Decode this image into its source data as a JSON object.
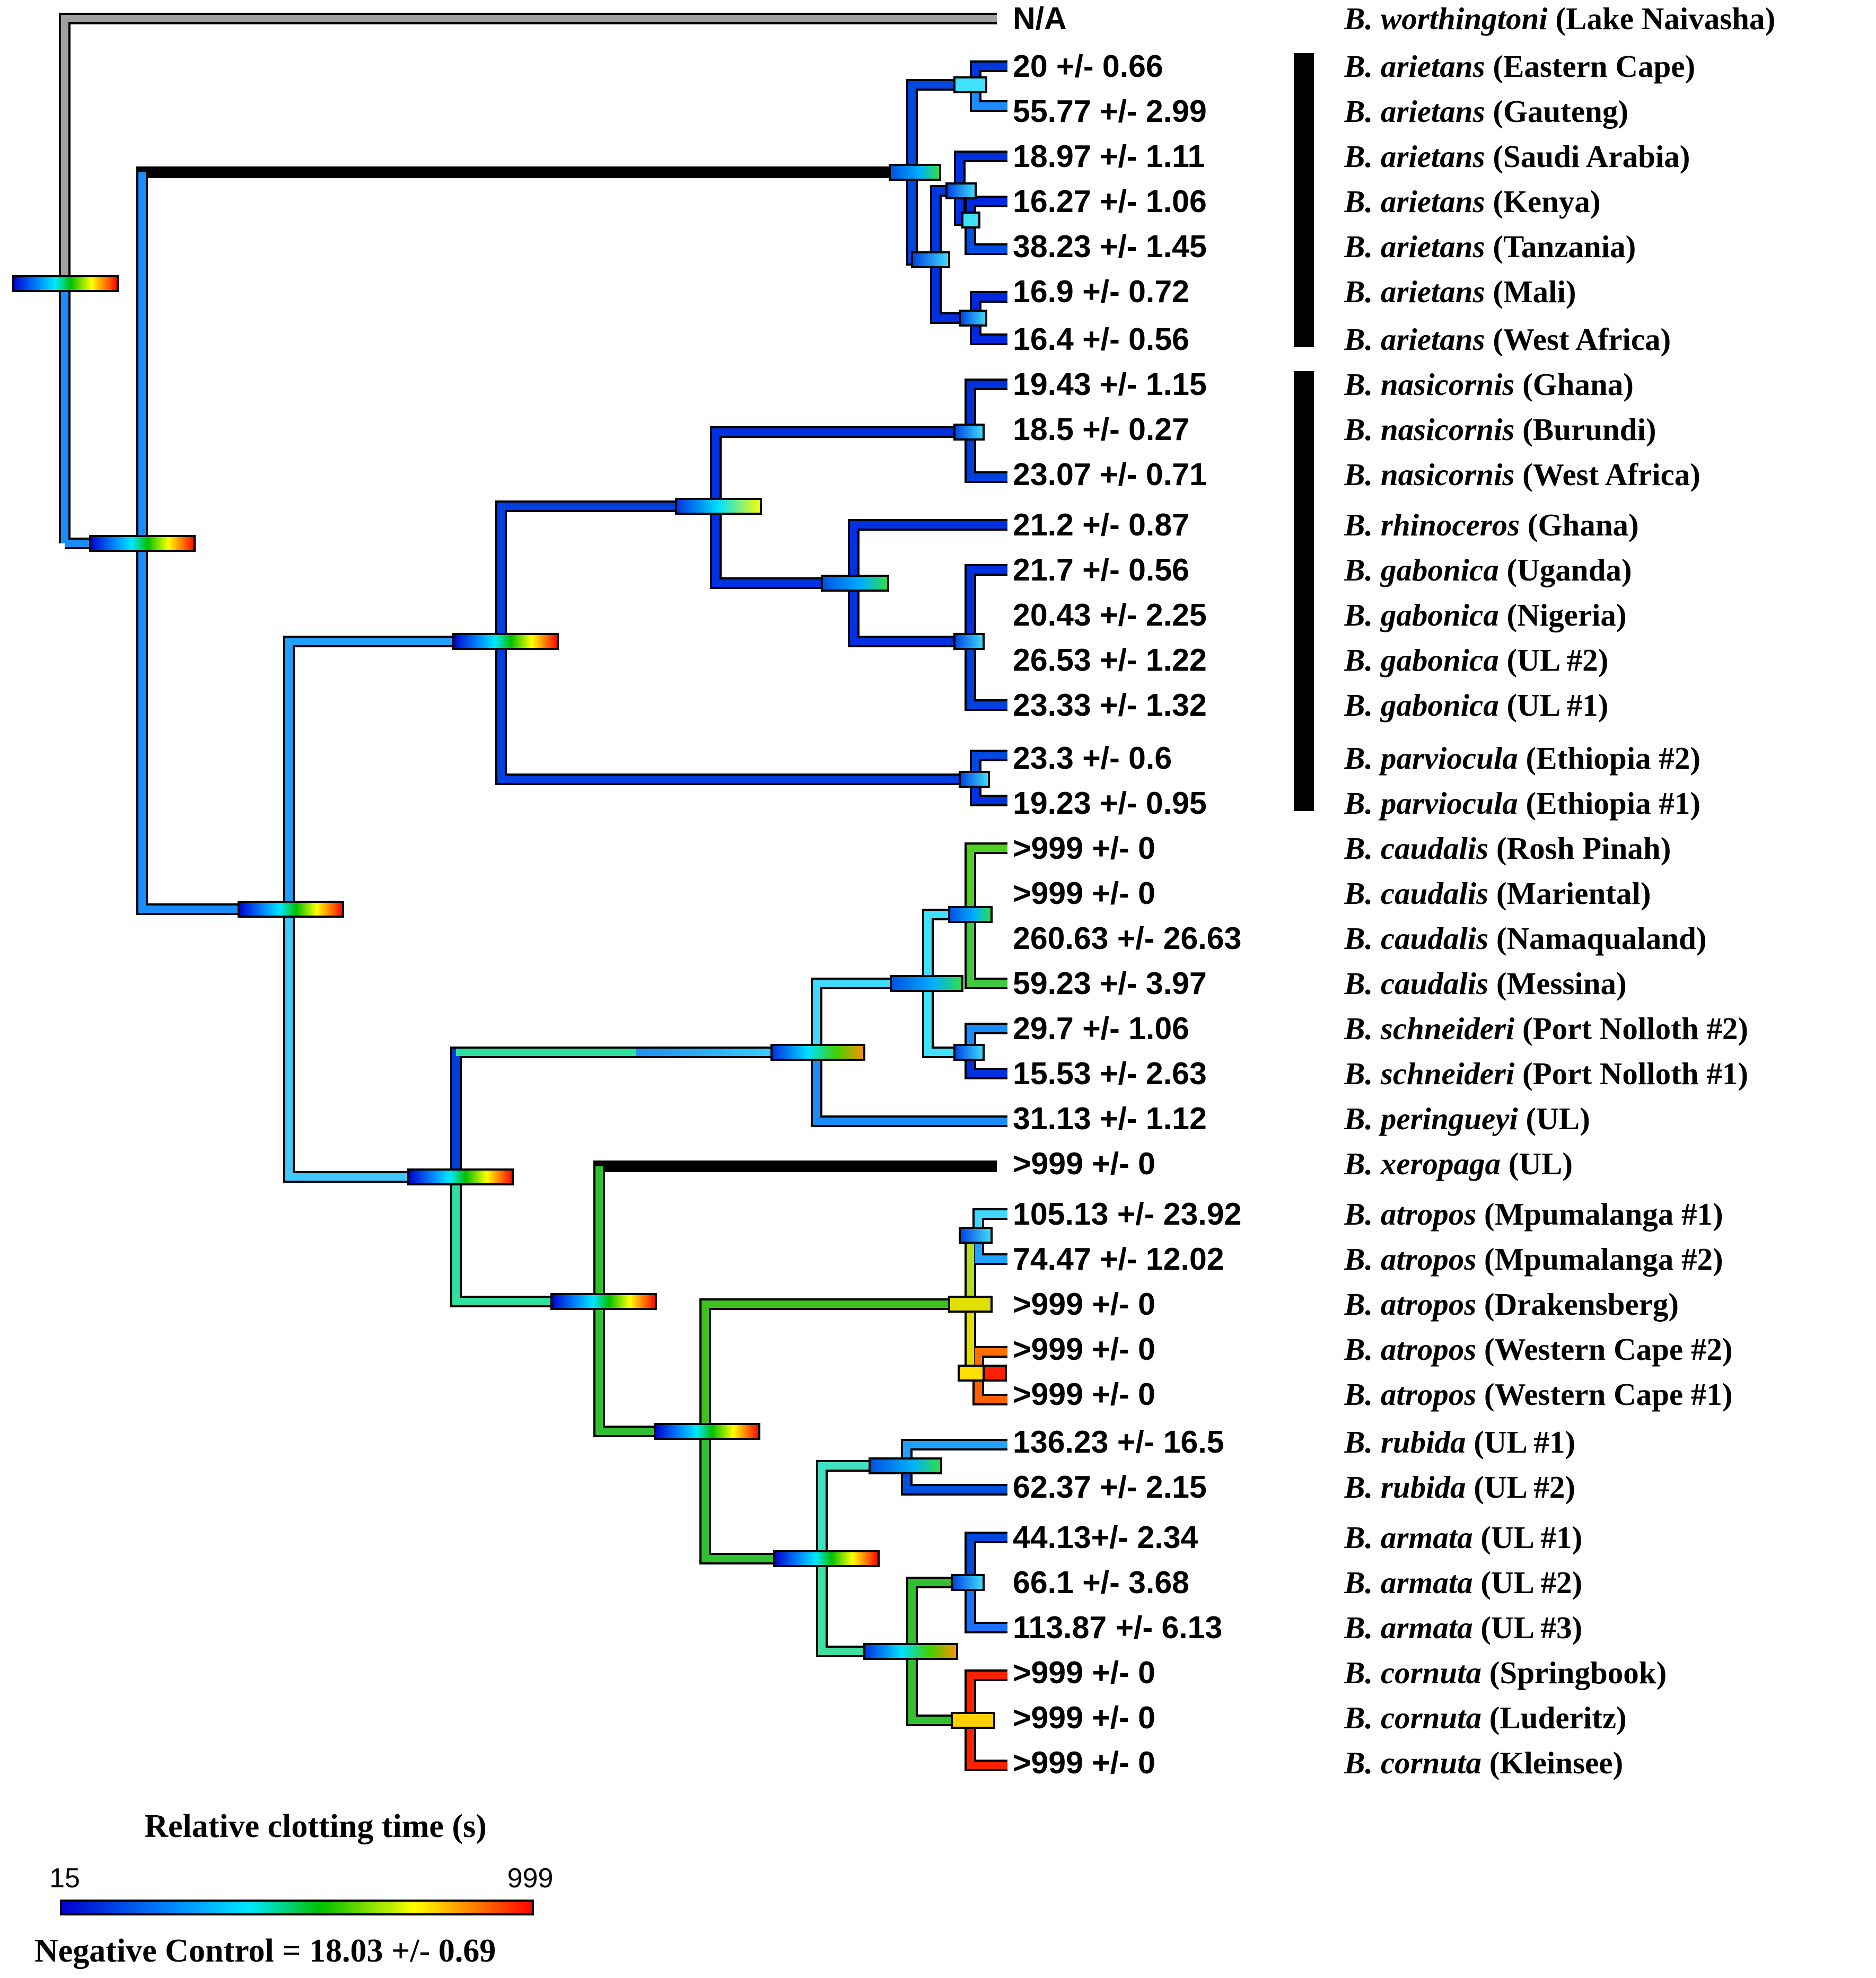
{
  "legend": {
    "title": "Relative clotting time (s)",
    "min_label": "15",
    "max_label": "999",
    "note": "Negative Control = 18.03 +/- 0.69"
  },
  "colors": {
    "low": "#0000d0",
    "mid_low": "#00e8ff",
    "mid": "#00c000",
    "mid_high": "#ffff00",
    "high": "#ff0000",
    "outgroup": "#a0a0a0",
    "clade_bar": "#000000"
  },
  "taxa": [
    {
      "id": "t0",
      "value": "N/A",
      "species": "B. worthingtoni",
      "locality": " (Lake Naivasha)"
    },
    {
      "id": "t1",
      "value": "20 +/- 0.66",
      "species": "B. arietans",
      "locality": " (Eastern Cape)"
    },
    {
      "id": "t2",
      "value": "55.77 +/- 2.99",
      "species": "B. arietans",
      "locality": " (Gauteng)"
    },
    {
      "id": "t3",
      "value": "18.97 +/- 1.11",
      "species": "B. arietans",
      "locality": " (Saudi Arabia)"
    },
    {
      "id": "t4",
      "value": "16.27 +/- 1.06",
      "species": "B. arietans",
      "locality": " (Kenya)"
    },
    {
      "id": "t5",
      "value": "38.23 +/- 1.45",
      "species": "B. arietans",
      "locality": " (Tanzania)"
    },
    {
      "id": "t6",
      "value": "16.9 +/- 0.72",
      "species": "B. arietans",
      "locality": " (Mali)"
    },
    {
      "id": "t7",
      "value": "16.4 +/- 0.56",
      "species": "B. arietans",
      "locality": " (West Africa)"
    },
    {
      "id": "t8",
      "value": "19.43 +/- 1.15",
      "species": "B. nasicornis",
      "locality": " (Ghana)"
    },
    {
      "id": "t9",
      "value": "18.5 +/- 0.27",
      "species": "B. nasicornis",
      "locality": " (Burundi)"
    },
    {
      "id": "t10",
      "value": "23.07 +/- 0.71",
      "species": "B. nasicornis",
      "locality": " (West Africa)"
    },
    {
      "id": "t11",
      "value": "21.2 +/- 0.87",
      "species": "B. rhinoceros",
      "locality": " (Ghana)"
    },
    {
      "id": "t12",
      "value": "21.7 +/- 0.56",
      "species": "B. gabonica",
      "locality": " (Uganda)"
    },
    {
      "id": "t13",
      "value": "20.43 +/- 2.25",
      "species": "B. gabonica",
      "locality": " (Nigeria)"
    },
    {
      "id": "t14",
      "value": "26.53 +/- 1.22",
      "species": "B. gabonica",
      "locality": " (UL #2)"
    },
    {
      "id": "t15",
      "value": "23.33 +/- 1.32",
      "species": "B. gabonica",
      "locality": " (UL #1)"
    },
    {
      "id": "t16",
      "value": "23.3 +/- 0.6",
      "species": "B. parviocula",
      "locality": " (Ethiopia #2)"
    },
    {
      "id": "t17",
      "value": "19.23 +/- 0.95",
      "species": "B. parviocula",
      "locality": " (Ethiopia #1)"
    },
    {
      "id": "t18",
      "value": ">999 +/- 0",
      "species": "B. caudalis",
      "locality": " (Rosh Pinah)"
    },
    {
      "id": "t19",
      "value": ">999 +/- 0",
      "species": "B. caudalis",
      "locality": " (Mariental)"
    },
    {
      "id": "t20",
      "value": "260.63 +/- 26.63",
      "species": "B. caudalis",
      "locality": " (Namaqualand)"
    },
    {
      "id": "t21",
      "value": "59.23 +/- 3.97",
      "species": "B. caudalis",
      "locality": " (Messina)"
    },
    {
      "id": "t22",
      "value": "29.7 +/- 1.06",
      "species": "B. schneideri",
      "locality": " (Port Nolloth #2)"
    },
    {
      "id": "t23",
      "value": "15.53 +/- 2.63",
      "species": "B. schneideri",
      "locality": " (Port Nolloth #1)"
    },
    {
      "id": "t24",
      "value": "31.13 +/- 1.12",
      "species": "B. peringueyi",
      "locality": " (UL)"
    },
    {
      "id": "t25",
      "value": ">999 +/- 0",
      "species": "B. xeropaga",
      "locality": " (UL)"
    },
    {
      "id": "t26",
      "value": "105.13 +/- 23.92",
      "species": "B. atropos",
      "locality": " (Mpumalanga #1)"
    },
    {
      "id": "t27",
      "value": "74.47 +/- 12.02",
      "species": "B. atropos",
      "locality": " (Mpumalanga #2)"
    },
    {
      "id": "t28",
      "value": ">999 +/- 0",
      "species": "B. atropos",
      "locality": " (Drakensberg)"
    },
    {
      "id": "t29",
      "value": ">999 +/- 0",
      "species": "B. atropos",
      "locality": " (Western Cape #2)"
    },
    {
      "id": "t30",
      "value": ">999 +/- 0",
      "species": "B. atropos",
      "locality": " (Western Cape #1)"
    },
    {
      "id": "t31",
      "value": "136.23 +/- 16.5",
      "species": "B. rubida",
      "locality": " (UL #1)"
    },
    {
      "id": "t32",
      "value": "62.37 +/- 2.15",
      "species": "B. rubida",
      "locality": " (UL #2)"
    },
    {
      "id": "t33",
      "value": "44.13+/- 2.34",
      "species": "B. armata",
      "locality": " (UL #1)"
    },
    {
      "id": "t34",
      "value": "66.1 +/- 3.68",
      "species": "B. armata",
      "locality": " (UL #2)"
    },
    {
      "id": "t35",
      "value": "113.87 +/- 6.13",
      "species": "B. armata",
      "locality": " (UL #3)"
    },
    {
      "id": "t36",
      "value": ">999 +/- 0",
      "species": "B. cornuta",
      "locality": " (Springbook)"
    },
    {
      "id": "t37",
      "value": ">999 +/- 0",
      "species": "B. cornuta",
      "locality": " (Luderitz)"
    },
    {
      "id": "t38",
      "value": ">999 +/- 0",
      "species": "B. cornuta",
      "locality": " (Kleinsee)"
    }
  ]
}
